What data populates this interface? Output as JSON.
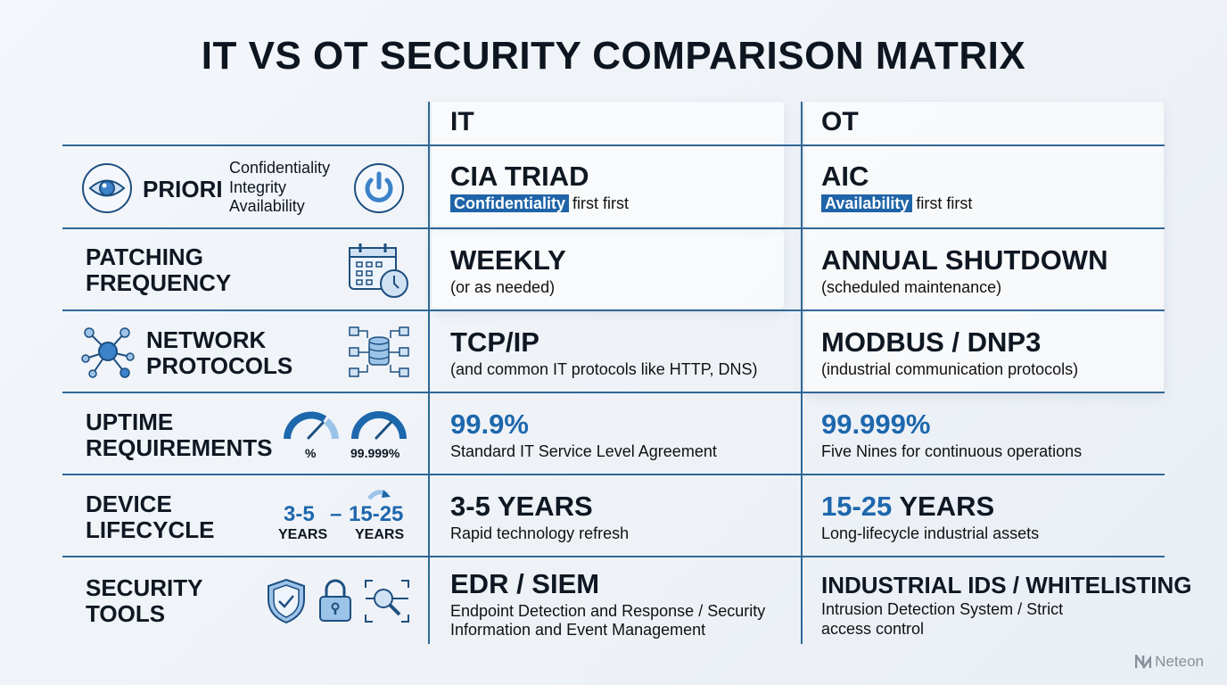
{
  "title": "IT VS OT SECURITY COMPARISON MATRIX",
  "columns": {
    "it": "IT",
    "ot": "OT"
  },
  "colors": {
    "accent": "#1f64a8",
    "grid": "#2f6796",
    "text": "#0f1722"
  },
  "rows": [
    {
      "label": "PRIORI",
      "label_extra": [
        "Confidentiality",
        "Integrity",
        "Availability"
      ],
      "icons": [
        "eye-icon",
        "power-icon"
      ],
      "it": {
        "main": "CIA TRIAD",
        "tag": "Confidentiality",
        "sub": "first first"
      },
      "ot": {
        "main": "AIC",
        "tag": "Availability",
        "sub": "first first"
      }
    },
    {
      "label": [
        "PATCHING",
        "FREQUENCY"
      ],
      "icons": [
        "calendar-clock-icon"
      ],
      "it": {
        "main": "WEEKLY",
        "sub": "(or as needed)"
      },
      "ot": {
        "main": "ANNUAL SHUTDOWN",
        "sub": "(scheduled maintenance)"
      }
    },
    {
      "label": [
        "NETWORK",
        "PROTOCOLS"
      ],
      "icons": [
        "network-hub-icon",
        "database-network-icon"
      ],
      "it": {
        "main": "TCP/IP",
        "sub": "(and common IT protocols like HTTP, DNS)"
      },
      "ot": {
        "main": "MODBUS / DNP3",
        "sub": "(industrial communication protocols)"
      }
    },
    {
      "label": [
        "UPTIME",
        "REQUIREMENTS"
      ],
      "icons": [
        "gauge-icon",
        "gauge-icon"
      ],
      "gauge_labels": [
        "%",
        "99.999%"
      ],
      "it": {
        "main": "99.9%",
        "sub": "Standard IT Service Level Agreement"
      },
      "ot": {
        "main": "99.999%",
        "sub": "Five Nines for continuous operations"
      }
    },
    {
      "label": [
        "DEVICE",
        "LIFECYCLE"
      ],
      "icons": [
        "refresh-arrow-icon"
      ],
      "lifecycle": {
        "from": "3-5",
        "dash": "–",
        "to": "15-25",
        "unit": "YEARS"
      },
      "it": {
        "main": "3-5 YEARS",
        "sub": "Rapid technology refresh"
      },
      "ot": {
        "main_blue": "15-25",
        "main": "YEARS",
        "sub": "Long-lifecycle industrial assets"
      }
    },
    {
      "label": [
        "SECURITY",
        "TOOLS"
      ],
      "icons": [
        "shield-check-icon",
        "padlock-icon",
        "scan-search-icon"
      ],
      "it": {
        "main": "EDR / SIEM",
        "sub": [
          "Endpoint Detection and Response / Security",
          "Information and Event Management"
        ]
      },
      "ot": {
        "main": "INDUSTRIAL IDS / WHITELISTING",
        "sub": [
          "Intrusion Detection System / Strict",
          "access control"
        ]
      }
    }
  ],
  "brand": "Neteon"
}
